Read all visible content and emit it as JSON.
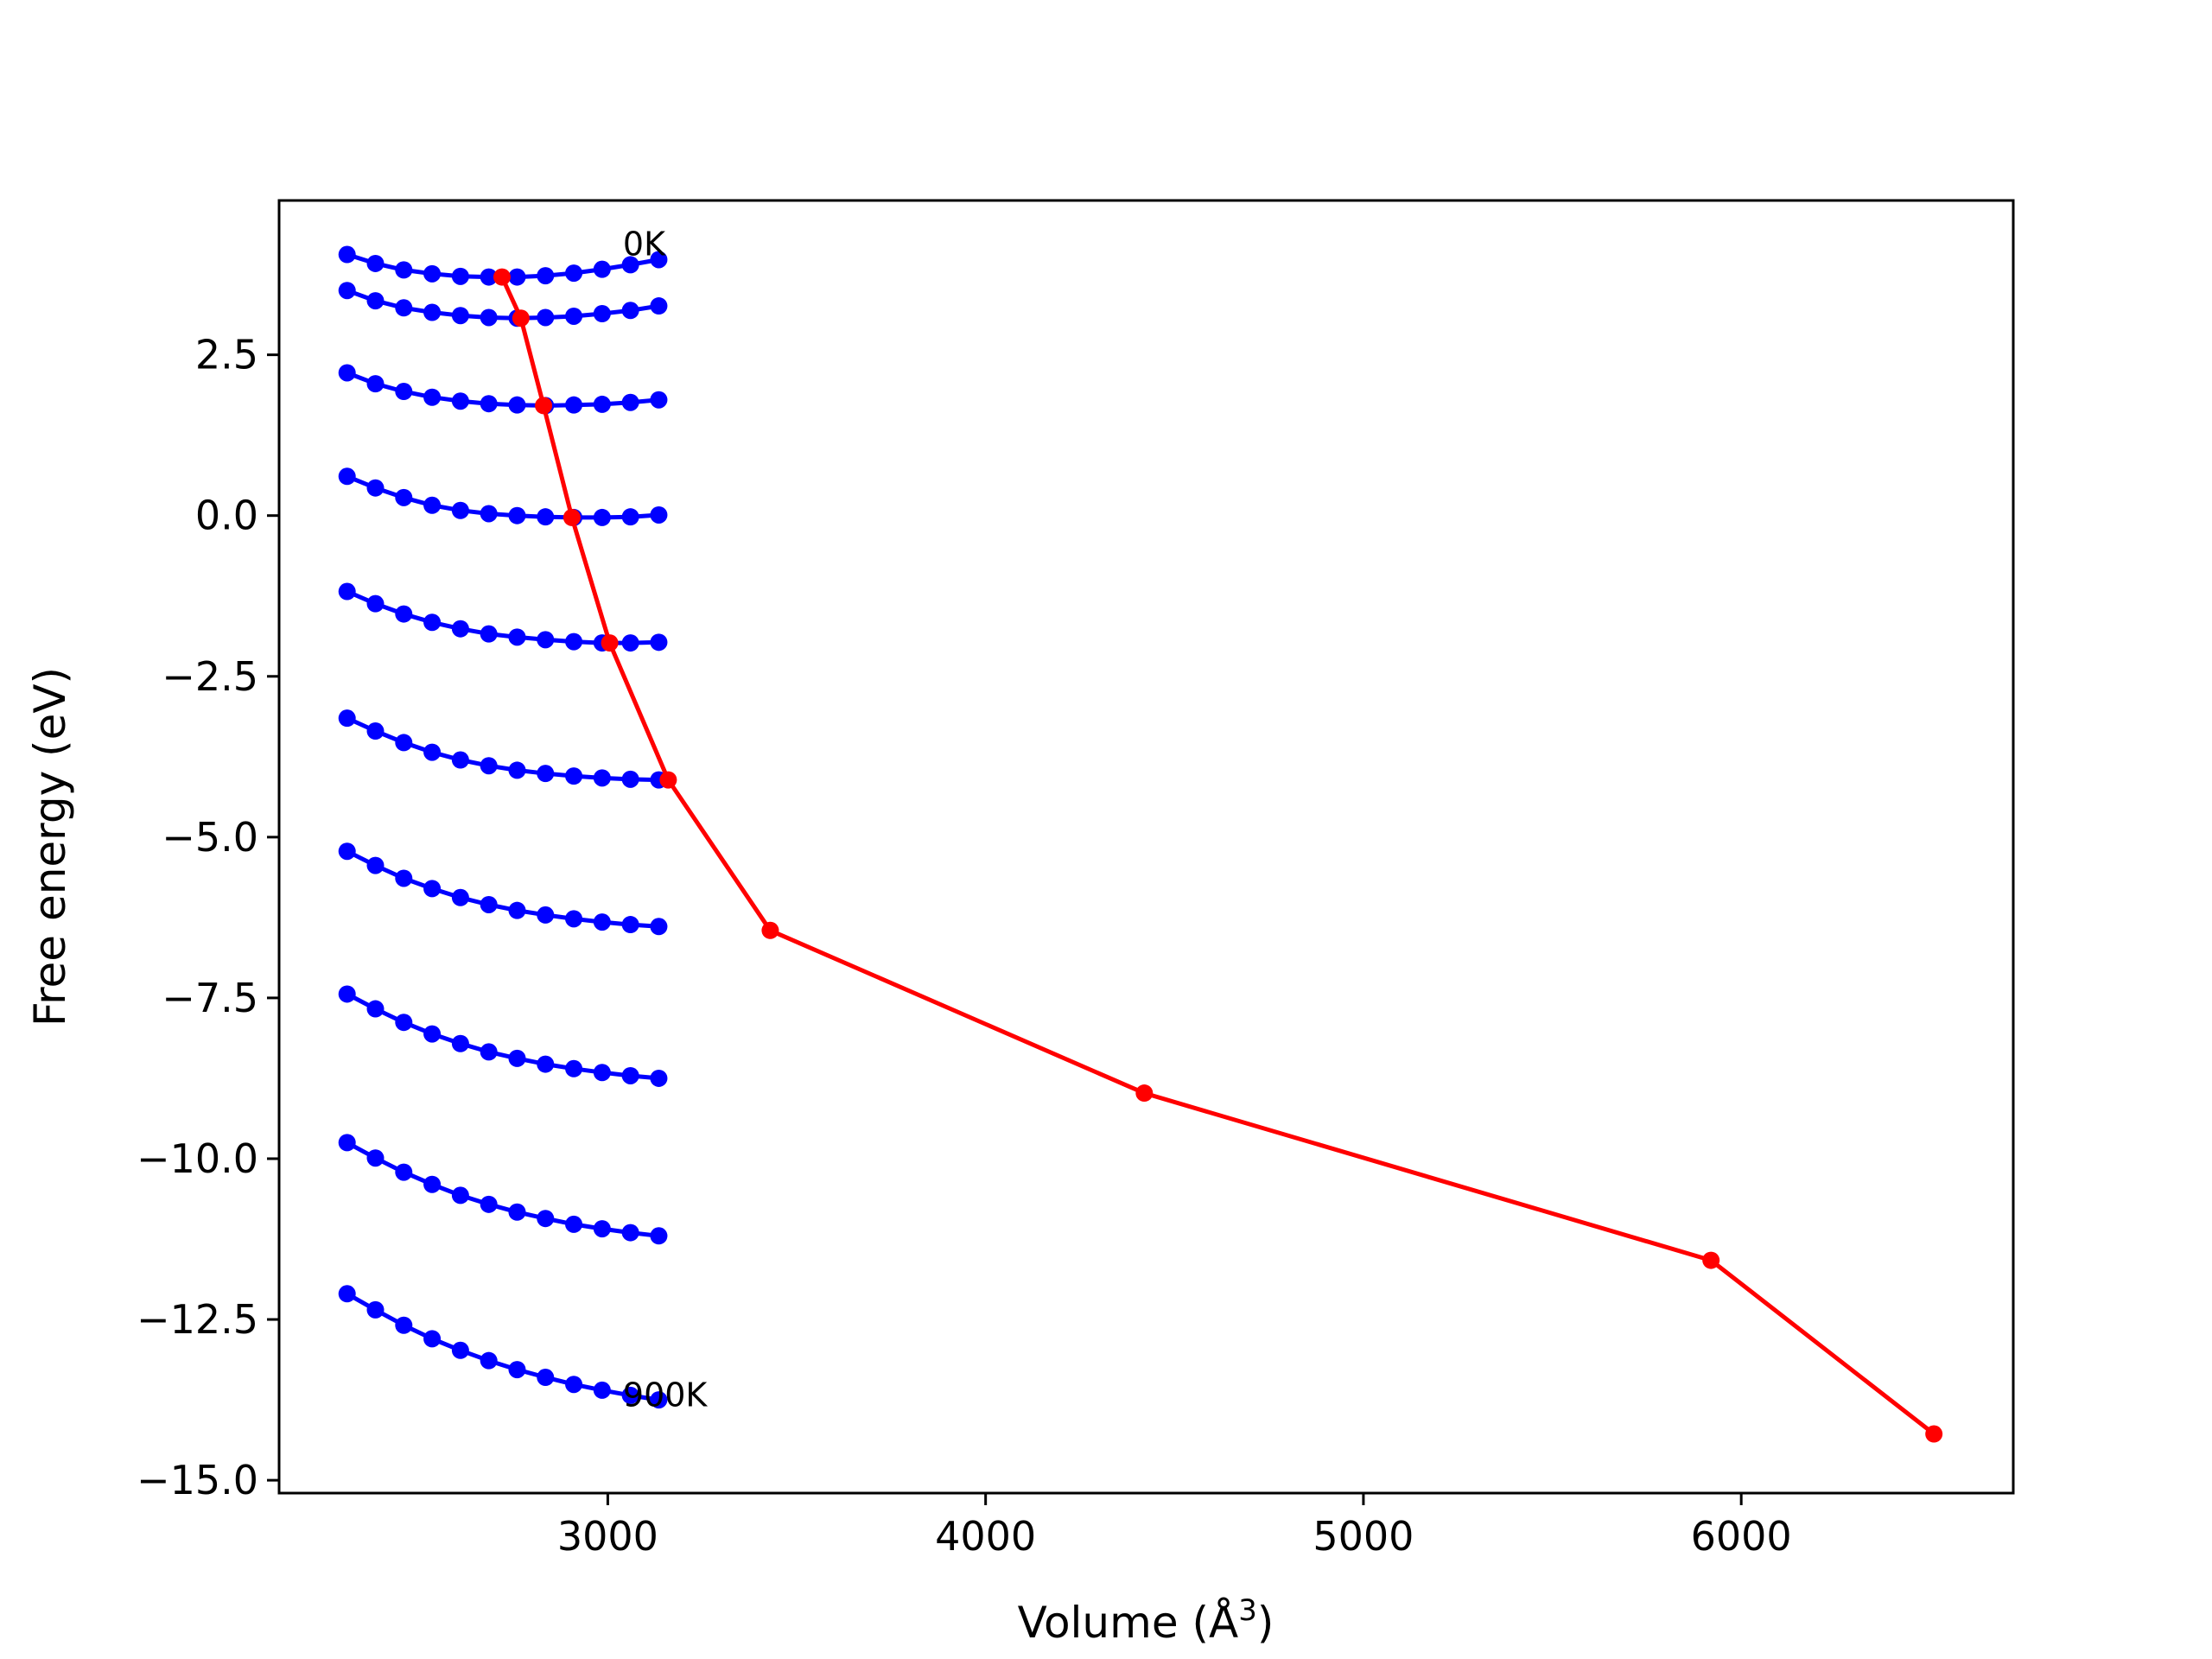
{
  "chart_data": {
    "type": "line",
    "title": "",
    "xlabel": "Volume (Å",
    "xlabel_sup": "3",
    "xlabel_close": ")",
    "ylabel": "Free energy (eV)",
    "xlim": [
      2130,
      6720
    ],
    "ylim": [
      -15.2,
      4.9
    ],
    "xticks": [
      3000,
      4000,
      5000,
      6000
    ],
    "xtick_labels": [
      "3000",
      "4000",
      "5000",
      "6000"
    ],
    "yticks": [
      2.5,
      0.0,
      -2.5,
      -5.0,
      -7.5,
      -10.0,
      -12.5,
      -15.0
    ],
    "ytick_labels": [
      "2.5",
      "0.0",
      "−2.5",
      "−5.0",
      "−7.5",
      "−10.0",
      "−12.5",
      "−15.0"
    ],
    "grid": false,
    "legend": null,
    "colors": {
      "isotherm": "#0000ff",
      "minimum": "#ff0000",
      "axes": "#000000"
    },
    "annotations": [
      {
        "text": "0K",
        "x": 3040,
        "y": 4.05
      },
      {
        "text": "900K",
        "x": 3040,
        "y": -13.85
      }
    ],
    "isotherm_volumes": [
      2310,
      2385,
      2460,
      2535,
      2610,
      2685,
      2760,
      2835,
      2910,
      2985,
      3060,
      3135
    ],
    "series": [
      {
        "values": [
          4.06,
          3.92,
          3.82,
          3.76,
          3.72,
          3.71,
          3.71,
          3.73,
          3.77,
          3.83,
          3.9,
          3.98
        ]
      },
      {
        "values": [
          3.5,
          3.34,
          3.23,
          3.16,
          3.11,
          3.08,
          3.07,
          3.08,
          3.1,
          3.14,
          3.19,
          3.26
        ]
      },
      {
        "values": [
          2.22,
          2.05,
          1.93,
          1.84,
          1.78,
          1.74,
          1.72,
          1.71,
          1.72,
          1.73,
          1.76,
          1.8
        ]
      },
      {
        "values": [
          0.61,
          0.43,
          0.28,
          0.16,
          0.08,
          0.03,
          0.0,
          -0.02,
          -0.03,
          -0.03,
          -0.02,
          0.01
        ]
      },
      {
        "values": [
          -1.18,
          -1.37,
          -1.53,
          -1.66,
          -1.76,
          -1.84,
          -1.89,
          -1.93,
          -1.96,
          -1.98,
          -1.98,
          -1.97
        ]
      },
      {
        "values": [
          -3.15,
          -3.35,
          -3.53,
          -3.68,
          -3.8,
          -3.89,
          -3.96,
          -4.01,
          -4.05,
          -4.08,
          -4.1,
          -4.11
        ]
      },
      {
        "values": [
          -5.22,
          -5.44,
          -5.64,
          -5.8,
          -5.94,
          -6.05,
          -6.14,
          -6.21,
          -6.27,
          -6.32,
          -6.36,
          -6.39
        ]
      },
      {
        "values": [
          -7.44,
          -7.67,
          -7.88,
          -8.06,
          -8.21,
          -8.34,
          -8.44,
          -8.53,
          -8.6,
          -8.66,
          -8.71,
          -8.75
        ]
      },
      {
        "values": [
          -9.75,
          -9.99,
          -10.21,
          -10.4,
          -10.57,
          -10.71,
          -10.83,
          -10.93,
          -11.02,
          -11.09,
          -11.15,
          -11.2
        ]
      },
      {
        "values": [
          -12.1,
          -12.35,
          -12.59,
          -12.8,
          -12.98,
          -13.14,
          -13.28,
          -13.4,
          -13.51,
          -13.6,
          -13.68,
          -13.75
        ]
      }
    ],
    "minimum_path": {
      "x": [
        2720,
        2770,
        2830,
        2905,
        3005,
        3160,
        3430,
        4420,
        5920,
        6510
      ],
      "y": [
        3.71,
        3.07,
        1.71,
        -0.03,
        -1.98,
        -4.11,
        -6.45,
        -8.98,
        -11.58,
        -14.28
      ]
    }
  }
}
